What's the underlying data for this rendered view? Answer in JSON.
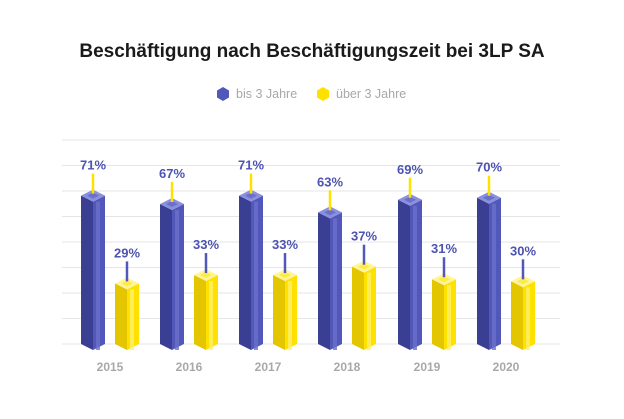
{
  "colors": {
    "series_blue": "#5258ba",
    "series_yellow": "#ffe100",
    "label_blue": "#4d53b0",
    "muted_text": "#a8a8a8"
  },
  "chart_data": {
    "type": "bar",
    "title": "Beschäftigung nach Beschäftigungszeit bei 3LP SA",
    "categories": [
      "2015",
      "2016",
      "2017",
      "2018",
      "2019",
      "2020"
    ],
    "series": [
      {
        "name": "bis 3 Jahre",
        "values": [
          71,
          67,
          71,
          63,
          69,
          70
        ],
        "labels": [
          "71%",
          "67%",
          "71%",
          "63%",
          "69%",
          "70%"
        ]
      },
      {
        "name": "über 3 Jahre",
        "values": [
          29,
          33,
          33,
          37,
          31,
          30
        ],
        "labels": [
          "29%",
          "33%",
          "33%",
          "37%",
          "31%",
          "30%"
        ]
      }
    ],
    "unit": "%",
    "ylim": [
      0,
      80
    ],
    "grid": true,
    "legend_position": "top-center"
  }
}
